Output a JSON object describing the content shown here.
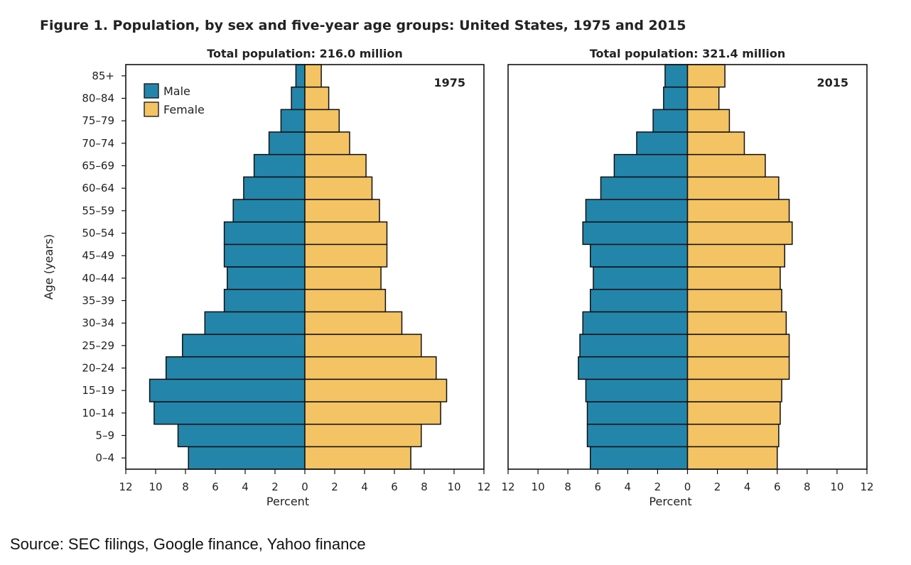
{
  "title": "Figure 1. Population, by sex and five-year age groups: United States, 1975 and 2015",
  "source": "Source: SEC filings, Google finance, Yahoo finance",
  "colors": {
    "male": "#2485aa",
    "female": "#f4c363"
  },
  "chart_data": [
    {
      "type": "bar",
      "orientation": "horizontal-pyramid",
      "subtitle": "Total population: 216.0 million",
      "year_label": "1975",
      "categories": [
        "0–4",
        "5–9",
        "10–14",
        "15–19",
        "20–24",
        "25–29",
        "30–34",
        "35–39",
        "40–44",
        "45–49",
        "50–54",
        "55–59",
        "60–64",
        "65–69",
        "70–74",
        "75–79",
        "80–84",
        "85+"
      ],
      "series": [
        {
          "name": "Male",
          "values": [
            7.8,
            8.5,
            10.1,
            10.4,
            9.3,
            8.2,
            6.7,
            5.4,
            5.2,
            5.4,
            5.4,
            4.8,
            4.1,
            3.4,
            2.4,
            1.6,
            0.9,
            0.6
          ]
        },
        {
          "name": "Female",
          "values": [
            7.1,
            7.8,
            9.1,
            9.5,
            8.8,
            7.8,
            6.5,
            5.4,
            5.1,
            5.5,
            5.5,
            5.0,
            4.5,
            4.1,
            3.0,
            2.3,
            1.6,
            1.1
          ]
        }
      ],
      "xlabel": "Percent",
      "ylabel": "Age (years)",
      "xlim": [
        -12,
        12
      ],
      "xticks": [
        "12",
        "10",
        "8",
        "6",
        "4",
        "2",
        "0",
        "2",
        "4",
        "6",
        "8",
        "10",
        "12"
      ],
      "legend": "top-left"
    },
    {
      "type": "bar",
      "orientation": "horizontal-pyramid",
      "subtitle": "Total population: 321.4 million",
      "year_label": "2015",
      "categories": [
        "0–4",
        "5–9",
        "10–14",
        "15–19",
        "20–24",
        "25–29",
        "30–34",
        "35–39",
        "40–44",
        "45–49",
        "50–54",
        "55–59",
        "60–64",
        "65–69",
        "70–74",
        "75–79",
        "80–84",
        "85+"
      ],
      "series": [
        {
          "name": "Male",
          "values": [
            6.5,
            6.7,
            6.7,
            6.8,
            7.3,
            7.2,
            7.0,
            6.5,
            6.3,
            6.5,
            7.0,
            6.8,
            5.8,
            4.9,
            3.4,
            2.3,
            1.6,
            1.5
          ]
        },
        {
          "name": "Female",
          "values": [
            6.0,
            6.1,
            6.2,
            6.3,
            6.8,
            6.8,
            6.6,
            6.3,
            6.2,
            6.5,
            7.0,
            6.8,
            6.1,
            5.2,
            3.8,
            2.8,
            2.1,
            2.5
          ]
        }
      ],
      "xlabel": "Percent",
      "xlim": [
        -12,
        12
      ],
      "xticks": [
        "12",
        "10",
        "8",
        "6",
        "4",
        "2",
        "0",
        "2",
        "4",
        "6",
        "8",
        "10",
        "12"
      ]
    }
  ]
}
